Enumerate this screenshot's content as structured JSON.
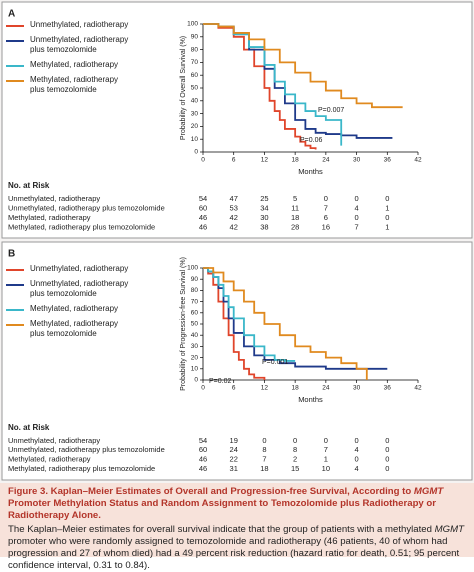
{
  "chart_data": [
    {
      "type": "line",
      "step": "post",
      "panel": "A",
      "x_label": "Months",
      "y_label": "Probability of Overall Survival (%)",
      "xlim": [
        0,
        42
      ],
      "xticks": [
        0,
        6,
        12,
        18,
        24,
        30,
        36,
        42
      ],
      "ylim": [
        0,
        100
      ],
      "yticks": [
        0,
        10,
        20,
        30,
        40,
        50,
        60,
        70,
        80,
        90,
        100
      ],
      "annotations": [
        "P=0.007",
        "P=0.06"
      ],
      "series": [
        {
          "name": "Unmethylated, radiotherapy",
          "color": "#e0452b",
          "x": [
            0,
            3,
            6,
            8,
            10,
            12,
            13,
            14,
            15,
            16,
            18,
            19,
            20,
            21,
            22
          ],
          "values": [
            100,
            97,
            90,
            80,
            67,
            50,
            40,
            32,
            25,
            18,
            12,
            8,
            5,
            3,
            2
          ]
        },
        {
          "name": "Unmethylated, radiotherapy plus temozolomide",
          "color": "#1f3a8a",
          "x": [
            0,
            3,
            6,
            9,
            12,
            14,
            16,
            18,
            20,
            22,
            24,
            27,
            30,
            37
          ],
          "values": [
            100,
            98,
            92,
            80,
            65,
            50,
            38,
            25,
            18,
            15,
            14,
            13,
            11,
            11
          ]
        },
        {
          "name": "Methylated, radiotherapy",
          "color": "#3ab7c9",
          "x": [
            0,
            3,
            6,
            9,
            12,
            14,
            16,
            18,
            20,
            22,
            24,
            26,
            27
          ],
          "values": [
            100,
            98,
            92,
            82,
            68,
            55,
            45,
            38,
            32,
            28,
            25,
            25,
            5
          ]
        },
        {
          "name": "Methylated, radiotherapy plus temozolomide",
          "color": "#e08a1f",
          "x": [
            0,
            3,
            6,
            9,
            12,
            15,
            18,
            21,
            24,
            27,
            30,
            33,
            36,
            39
          ],
          "values": [
            100,
            98,
            93,
            88,
            80,
            70,
            62,
            55,
            48,
            42,
            38,
            35,
            35,
            35
          ]
        }
      ]
    },
    {
      "type": "line",
      "step": "post",
      "panel": "B",
      "x_label": "Months",
      "y_label": "Probability of Progression-free Survival (%)",
      "xlim": [
        0,
        42
      ],
      "xticks": [
        0,
        6,
        12,
        18,
        24,
        30,
        36,
        42
      ],
      "ylim": [
        0,
        100
      ],
      "yticks": [
        0,
        10,
        20,
        30,
        40,
        50,
        60,
        70,
        80,
        90,
        100
      ],
      "annotations": [
        "P=0.02",
        "P=0.001"
      ],
      "series": [
        {
          "name": "Unmethylated, radiotherapy",
          "color": "#e0452b",
          "x": [
            0,
            1,
            2,
            3,
            4,
            5,
            6,
            7,
            8,
            9,
            10,
            12
          ],
          "values": [
            100,
            95,
            85,
            70,
            55,
            40,
            25,
            18,
            10,
            5,
            2,
            0
          ]
        },
        {
          "name": "Unmethylated, radiotherapy plus temozolomide",
          "color": "#1f3a8a",
          "x": [
            0,
            1,
            2,
            3,
            4,
            5,
            6,
            8,
            10,
            12,
            15,
            18,
            24,
            30,
            36
          ],
          "values": [
            100,
            97,
            92,
            82,
            70,
            55,
            42,
            30,
            22,
            18,
            15,
            12,
            10,
            10,
            10
          ]
        },
        {
          "name": "Methylated, radiotherapy",
          "color": "#3ab7c9",
          "x": [
            0,
            1,
            2,
            3,
            4,
            5,
            6,
            8,
            10,
            12,
            14,
            16,
            18
          ],
          "values": [
            100,
            97,
            92,
            85,
            75,
            65,
            55,
            40,
            30,
            22,
            18,
            17,
            17
          ]
        },
        {
          "name": "Methylated, radiotherapy plus temozolomide",
          "color": "#e08a1f",
          "x": [
            0,
            2,
            4,
            6,
            8,
            10,
            12,
            15,
            18,
            21,
            24,
            27,
            30,
            32
          ],
          "values": [
            100,
            96,
            88,
            80,
            70,
            60,
            50,
            40,
            30,
            25,
            20,
            15,
            10,
            0
          ]
        }
      ]
    }
  ],
  "risk_tables": [
    {
      "title": "No. at Risk",
      "rows": [
        {
          "label": "Unmethylated, radiotherapy",
          "values": [
            54,
            47,
            25,
            5,
            0,
            0,
            0
          ]
        },
        {
          "label": "Unmethylated, radiotherapy plus temozolomide",
          "values": [
            60,
            53,
            34,
            11,
            7,
            4,
            1
          ]
        },
        {
          "label": "Methylated, radiotherapy",
          "values": [
            46,
            42,
            30,
            18,
            6,
            0,
            0
          ]
        },
        {
          "label": "Methylated, radiotherapy plus temozolomide",
          "values": [
            46,
            42,
            38,
            28,
            16,
            7,
            1
          ]
        }
      ]
    },
    {
      "title": "No. at Risk",
      "rows": [
        {
          "label": "Unmethylated, radiotherapy",
          "values": [
            54,
            19,
            0,
            0,
            0,
            0,
            0
          ]
        },
        {
          "label": "Unmethylated, radiotherapy plus temozolomide",
          "values": [
            60,
            24,
            8,
            8,
            7,
            4,
            0
          ]
        },
        {
          "label": "Methylated, radiotherapy",
          "values": [
            46,
            22,
            7,
            2,
            1,
            0,
            0
          ]
        },
        {
          "label": "Methylated, radiotherapy plus temozolomide",
          "values": [
            46,
            31,
            18,
            15,
            10,
            4,
            0
          ]
        }
      ]
    }
  ],
  "caption": {
    "label": "Figure 3.",
    "title_parts": [
      "Kaplan–Meier Estimates of Overall and Progression-free Survival, According to ",
      "MGMT",
      " Promoter Methylation Status and Random Assignment to Temozolomide plus Radiotherapy or Radiotherapy Alone."
    ],
    "body_parts": [
      "The Kaplan–Meier estimates for overall survival indicate that the group of patients with a methylated ",
      "MGMT",
      " promoter who were randomly assigned to temozolomide and radiotherapy (46 patients, 40 of whom had progression and 27 of whom died) had a 49 percent risk reduction (hazard ratio for death, 0.51; 95 percent confidence interval, 0.31 to 0.84)."
    ]
  }
}
